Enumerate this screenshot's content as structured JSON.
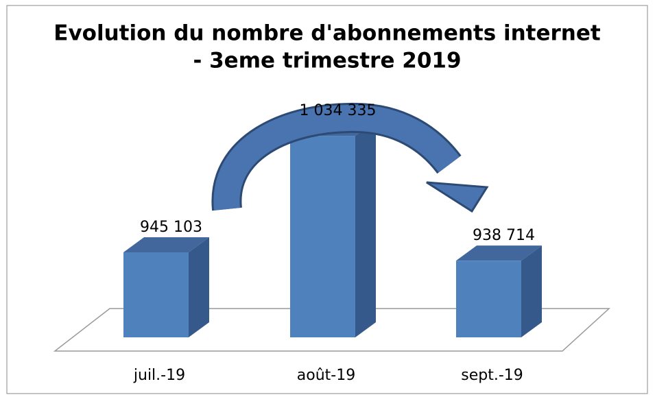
{
  "chart_data": {
    "type": "bar3d",
    "title": [
      "Evolution du nombre d'abonnements internet",
      "- 3eme trimestre 2019"
    ],
    "categories": [
      "juil.-19",
      "août-19",
      "sept.-19"
    ],
    "values": [
      945103,
      1034335,
      938714
    ],
    "value_labels": [
      "945 103",
      "1 034 335",
      "938 714"
    ],
    "color": "#4f81bd",
    "ylim": [
      880000,
      1100000
    ]
  }
}
